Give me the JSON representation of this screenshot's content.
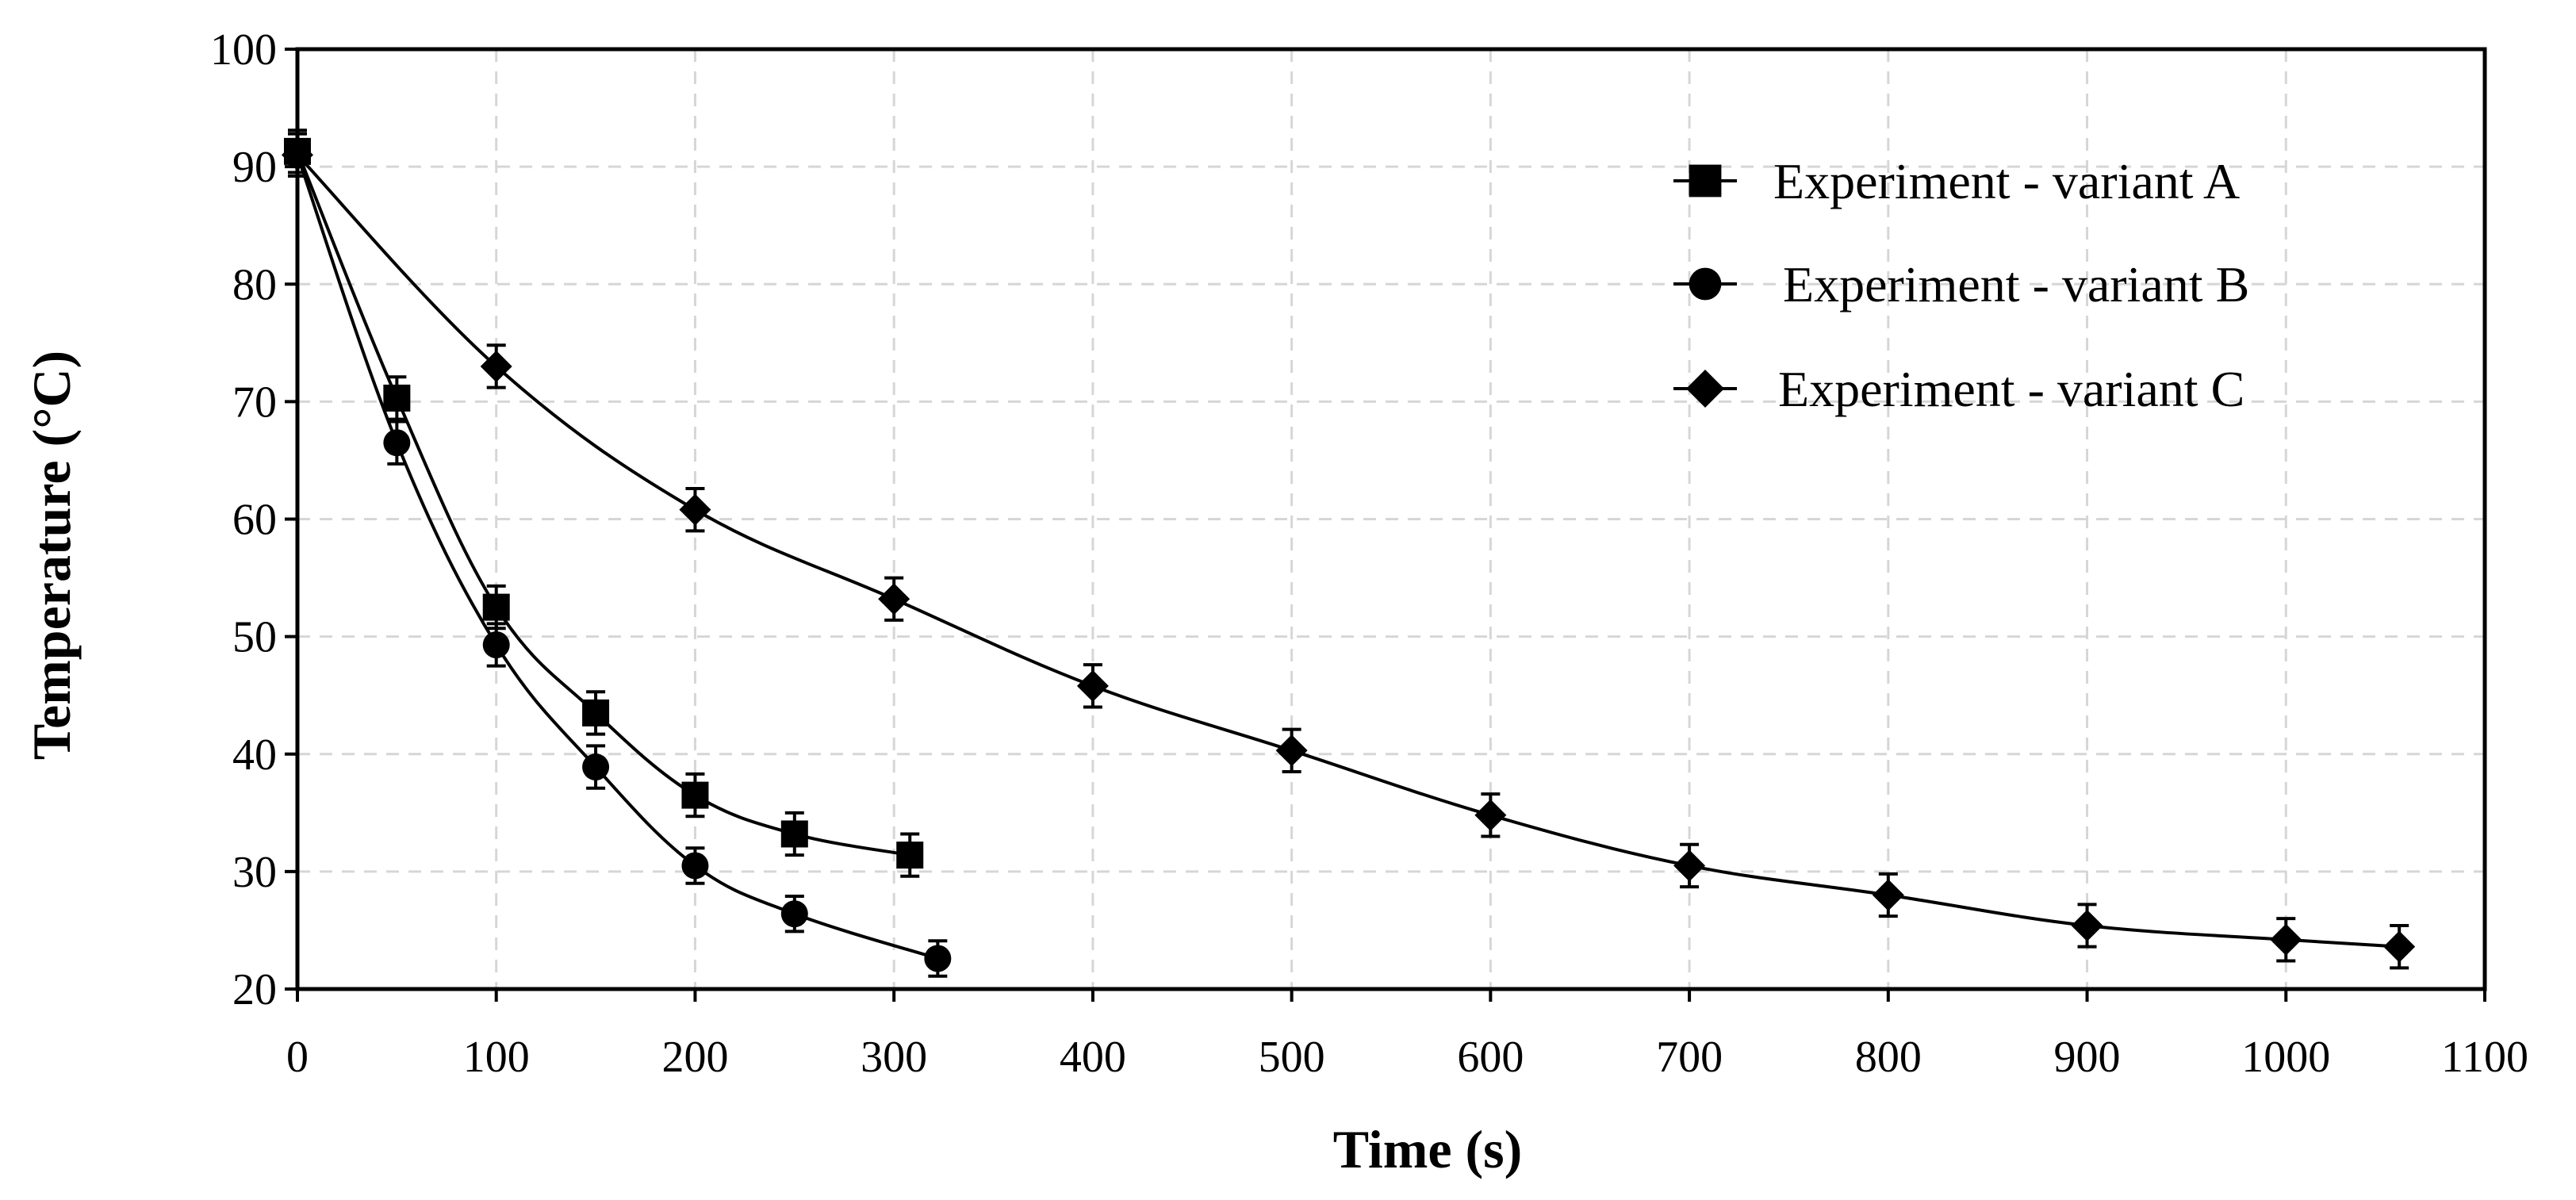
{
  "chart_data": {
    "type": "line",
    "title": "",
    "xlabel": "Time (s)",
    "ylabel": "Temperature (°C)",
    "xlim": [
      0,
      1100
    ],
    "ylim": [
      20,
      100
    ],
    "x_ticks": [
      0,
      100,
      200,
      300,
      400,
      500,
      600,
      700,
      800,
      900,
      1000,
      1100
    ],
    "y_ticks": [
      20,
      30,
      40,
      50,
      60,
      70,
      80,
      90,
      100
    ],
    "grid": true,
    "legend_position": "top-right",
    "series": [
      {
        "name": "Experiment - variant A",
        "marker": "square",
        "x": [
          0,
          50,
          100,
          150,
          200,
          250,
          308
        ],
        "y": [
          91.3,
          70.3,
          52.5,
          43.5,
          36.5,
          33.2,
          31.4
        ],
        "error": [
          1.8,
          1.8,
          1.8,
          1.8,
          1.8,
          1.8,
          1.8
        ]
      },
      {
        "name": "Experiment - variant B",
        "marker": "circle",
        "x": [
          0,
          50,
          100,
          150,
          200,
          250,
          322
        ],
        "y": [
          91.0,
          66.5,
          49.3,
          38.9,
          30.5,
          26.4,
          22.6
        ],
        "error": [
          1.8,
          1.8,
          1.8,
          1.8,
          1.5,
          1.5,
          1.5
        ]
      },
      {
        "name": "Experiment - variant C",
        "marker": "diamond",
        "x": [
          0,
          100,
          200,
          300,
          400,
          500,
          600,
          700,
          800,
          900,
          1000,
          1057
        ],
        "y": [
          91.0,
          73.0,
          60.8,
          53.2,
          45.8,
          40.3,
          34.8,
          30.5,
          28.0,
          25.4,
          24.2,
          23.6
        ],
        "error": [
          1.8,
          1.8,
          1.8,
          1.8,
          1.8,
          1.8,
          1.8,
          1.8,
          1.8,
          1.8,
          1.8,
          1.8
        ]
      }
    ]
  }
}
